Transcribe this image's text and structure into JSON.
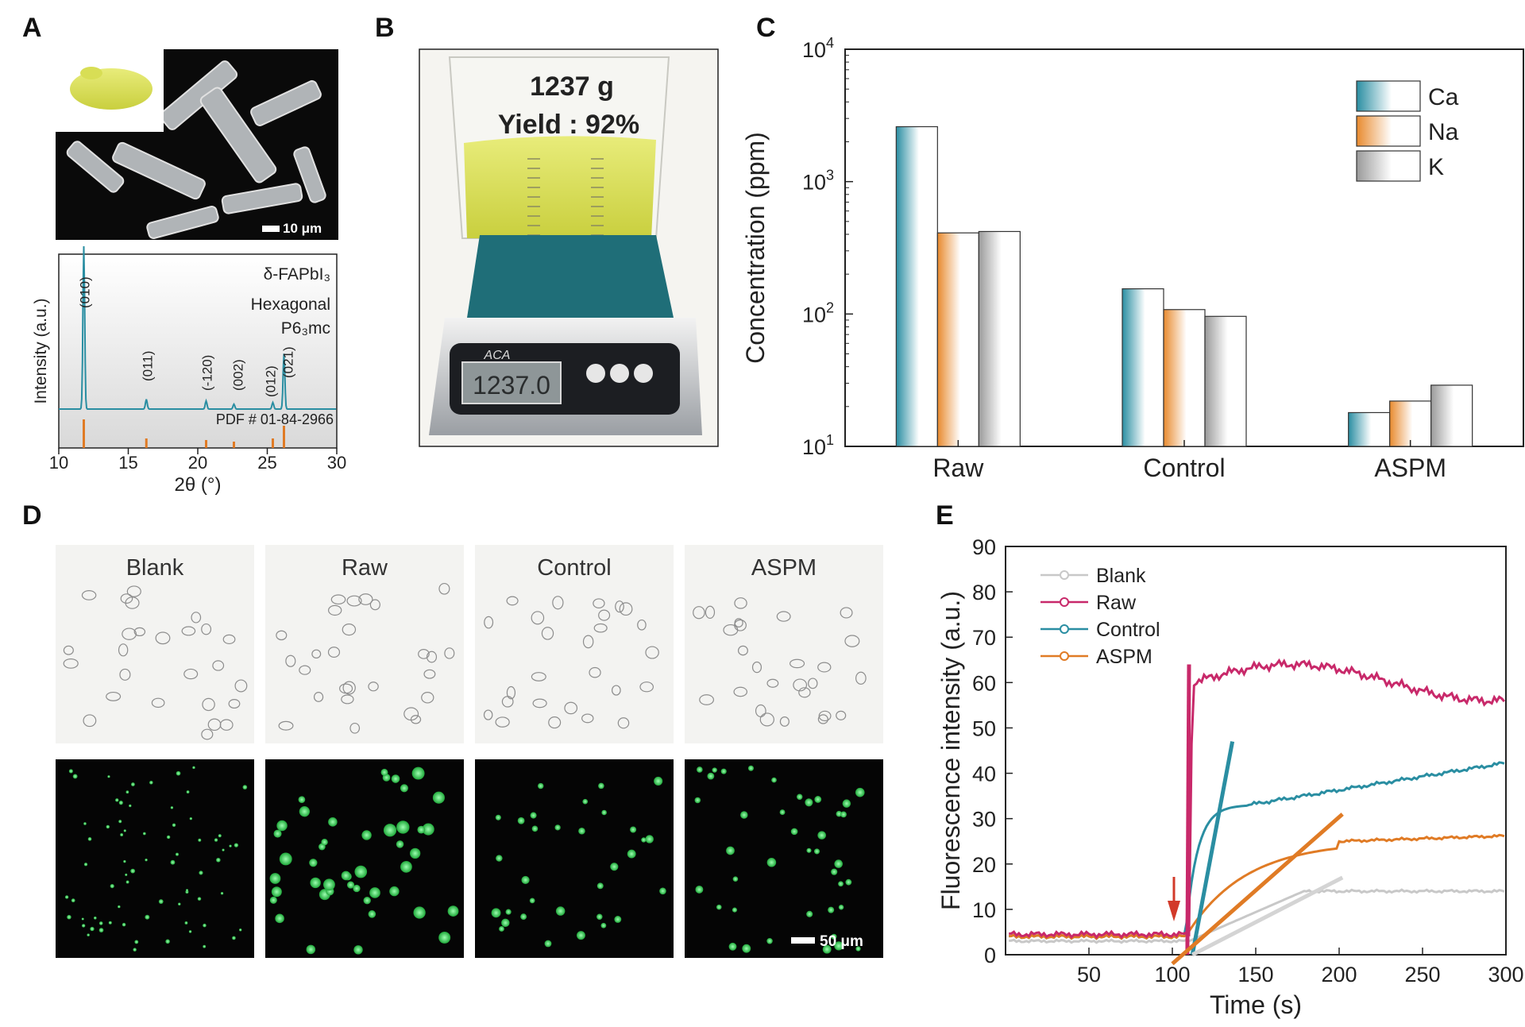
{
  "panel_labels": {
    "a": "A",
    "b": "B",
    "c": "C",
    "d": "D",
    "e": "E"
  },
  "panel_a": {
    "sem_scale": "10 μm",
    "xrd": {
      "phase": "δ-FAPbI₃",
      "system": "Hexagonal",
      "space_group": "P6₃mc",
      "pdf": "PDF # 01-84-2966",
      "peaks": [
        "(010)",
        "(011)",
        "(-120)",
        "(002)",
        "(012)",
        "(021)"
      ],
      "peak_positions": [
        11.8,
        16.3,
        20.6,
        22.6,
        25.4,
        26.2
      ],
      "xlabel": "2θ (°)",
      "ylabel": "Intensity (a.u.)",
      "xticks": [
        "10",
        "15",
        "20",
        "25",
        "30"
      ]
    }
  },
  "panel_b": {
    "mass": "1237 g",
    "yield": "Yield : 92%",
    "scale_brand": "ACA",
    "scale_reading": "1237.0"
  },
  "panel_d": {
    "columns": [
      "Blank",
      "Raw",
      "Control",
      "ASPM"
    ],
    "scale_bar": "50 μm"
  },
  "panel_e": {
    "xlabel": "Time (s)",
    "ylabel": "Fluorescence intensity (a.u.)",
    "xticks": [
      "50",
      "100",
      "150",
      "200",
      "250",
      "300"
    ],
    "yticks": [
      "0",
      "10",
      "20",
      "30",
      "40",
      "50",
      "60",
      "70",
      "80",
      "90"
    ],
    "legend": [
      "Blank",
      "Raw",
      "Control",
      "ASPM"
    ],
    "colors": {
      "Blank": "#c8c8c8",
      "Raw": "#c8296a",
      "Control": "#2a8ea2",
      "ASPM": "#e07b25"
    }
  },
  "chart_data": {
    "type": "bar",
    "categories": [
      "Raw",
      "Control",
      "ASPM"
    ],
    "series": [
      {
        "name": "Ca",
        "values": [
          2600,
          155,
          18
        ]
      },
      {
        "name": "Na",
        "values": [
          410,
          108,
          22
        ]
      },
      {
        "name": "K",
        "values": [
          420,
          96,
          29
        ]
      }
    ],
    "ylabel": "Concentration (ppm)",
    "yscale": "log",
    "ylim": [
      10,
      10000
    ],
    "ytick_exponents": [
      "1",
      "2",
      "3",
      "4"
    ],
    "ytick_base": "10",
    "legend_position": "top-right",
    "colors": {
      "Ca": "#2a8ea2",
      "Na": "#e88a2e",
      "K": "#9a9a9a"
    }
  }
}
